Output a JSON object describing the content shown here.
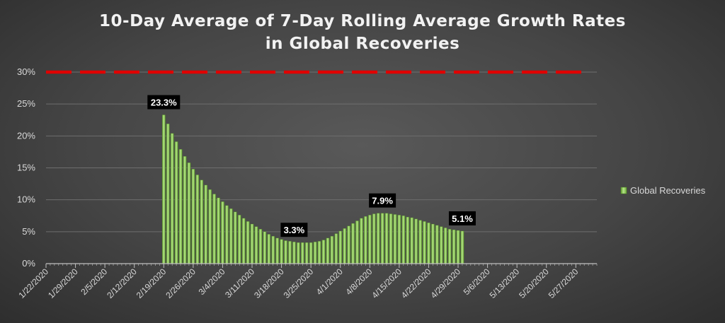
{
  "chart_data": {
    "type": "bar",
    "title_lines": [
      "10-Day Average of 7-Day Rolling Average Growth Rates",
      "in Global Recoveries"
    ],
    "ylim": [
      0,
      30
    ],
    "y_ticks": [
      "0%",
      "5%",
      "10%",
      "15%",
      "20%",
      "25%",
      "30%"
    ],
    "grid": true,
    "x_tick_labels": [
      "1/22/2020",
      "1/29/2020",
      "2/5/2020",
      "2/12/2020",
      "2/19/2020",
      "2/26/2020",
      "3/4/2020",
      "3/11/2020",
      "3/18/2020",
      "3/25/2020",
      "4/1/2020",
      "4/8/2020",
      "4/15/2020",
      "4/22/2020",
      "4/29/2020",
      "5/6/2020",
      "5/13/2020",
      "5/20/2020",
      "5/27/2020"
    ],
    "x_range": [
      "1/22/2020",
      "6/1/2020"
    ],
    "reference_line": {
      "value": 30,
      "color": "#e00000",
      "style": "dashed"
    },
    "series": [
      {
        "name": "Global Recoveries",
        "color": "#8fd14f",
        "start_date": "2/19/2020",
        "values": [
          23.3,
          21.9,
          20.4,
          19.1,
          17.9,
          16.8,
          15.8,
          14.8,
          13.9,
          13.1,
          12.3,
          11.6,
          10.9,
          10.3,
          9.7,
          9.1,
          8.6,
          8.1,
          7.6,
          7.1,
          6.6,
          6.2,
          5.8,
          5.4,
          5.0,
          4.6,
          4.3,
          4.0,
          3.8,
          3.6,
          3.5,
          3.4,
          3.3,
          3.3,
          3.3,
          3.3,
          3.4,
          3.5,
          3.7,
          4.0,
          4.3,
          4.7,
          5.1,
          5.5,
          5.9,
          6.3,
          6.7,
          7.1,
          7.4,
          7.6,
          7.8,
          7.9,
          7.9,
          7.9,
          7.8,
          7.7,
          7.6,
          7.5,
          7.3,
          7.2,
          7.0,
          6.8,
          6.6,
          6.4,
          6.2,
          6.0,
          5.8,
          5.6,
          5.4,
          5.3,
          5.2,
          5.1
        ]
      }
    ],
    "annotations": [
      {
        "text": "23.3%",
        "date": "2/19/2020",
        "value": 23.3
      },
      {
        "text": "3.3%",
        "date": "3/21/2020",
        "value": 3.3
      },
      {
        "text": "7.9%",
        "date": "4/11/2020",
        "value": 7.9
      },
      {
        "text": "5.1%",
        "date": "4/30/2020",
        "value": 5.1
      }
    ],
    "legend": {
      "position": "right",
      "label": "Global Recoveries"
    }
  }
}
